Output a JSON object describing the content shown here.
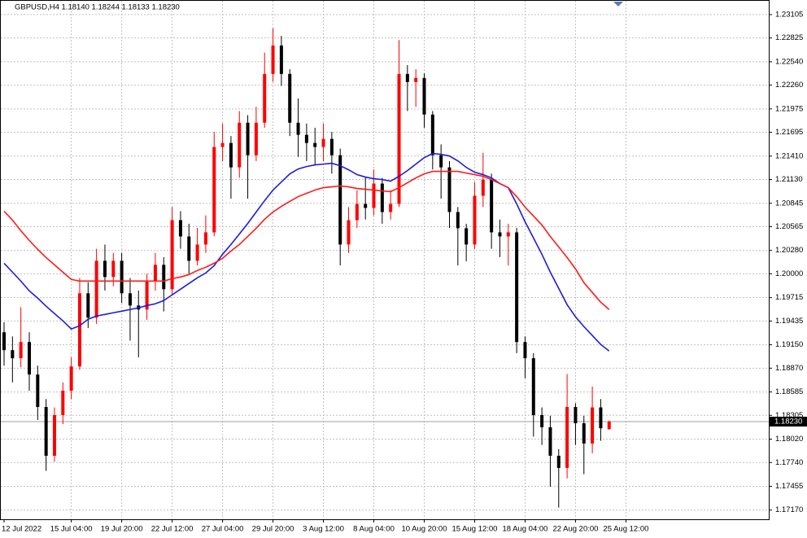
{
  "chart_data": {
    "type": "candlestick",
    "title": "GBPUSD,H4  1.18140 1.18244 1.18133 1.18230",
    "categories": [
      "12 Jul 2022",
      null,
      null,
      null,
      null,
      null,
      null,
      null,
      "15 Jul 04:00",
      null,
      null,
      null,
      null,
      null,
      "19 Jul 20:00",
      null,
      null,
      null,
      null,
      null,
      "22 Jul 12:00",
      null,
      null,
      null,
      null,
      null,
      "27 Jul 04:00",
      null,
      null,
      null,
      null,
      null,
      "29 Jul 20:00",
      null,
      null,
      null,
      null,
      null,
      "3 Aug 12:00",
      null,
      null,
      null,
      null,
      null,
      "8 Aug 04:00",
      null,
      null,
      null,
      null,
      null,
      "10 Aug 20:00",
      null,
      null,
      null,
      null,
      null,
      "15 Aug 12:00",
      null,
      null,
      null,
      null,
      null,
      "18 Aug 04:00",
      null,
      null,
      null,
      null,
      null,
      "22 Aug 20:00",
      null,
      null,
      null,
      null,
      null,
      "25 Aug 12:00"
    ],
    "open": [
      1.193,
      1.19086,
      1.18989,
      1.19183,
      1.18794,
      1.18405,
      1.17821,
      1.18308,
      1.186,
      1.18891,
      1.19767,
      1.19475,
      1.20156,
      1.19962,
      1.20156,
      1.19767,
      1.19621,
      1.19573,
      1.19913,
      1.20108,
      1.19816,
      1.20643,
      1.20448,
      1.20156,
      1.20351,
      1.20497,
      1.21519,
      1.21567,
      1.21275,
      1.2181,
      1.21421,
      1.2181,
      1.22394,
      1.22735,
      1.22394,
      1.2181,
      1.21665,
      1.21567,
      1.21519,
      1.21616,
      1.21421,
      1.20351,
      1.20643,
      1.20837,
      1.20789,
      1.21081,
      1.2074,
      1.20837,
      1.22394,
      1.22297,
      1.22346,
      1.21908,
      1.21421,
      1.21275,
      1.2074,
      1.20546,
      1.20351,
      1.20935,
      1.21129,
      1.20497,
      1.20448,
      1.20497,
      1.19183,
      1.18989,
      1.18308,
      1.18162,
      1.17821,
      1.17675,
      1.18405,
      1.1821,
      1.17967,
      1.184,
      1.1814,
      null,
      null
    ],
    "high": [
      1.1942,
      1.1925,
      1.196,
      1.193,
      1.189,
      1.185,
      1.184,
      1.187,
      1.19,
      1.1995,
      1.199,
      1.203,
      1.2035,
      1.2025,
      1.2025,
      1.1995,
      1.198,
      1.2,
      1.2025,
      1.202,
      1.208,
      1.2075,
      1.206,
      1.2055,
      1.207,
      1.217,
      1.218,
      1.2165,
      1.2195,
      1.219,
      1.22,
      1.2265,
      1.2294,
      1.2285,
      1.2245,
      1.221,
      1.218,
      1.2175,
      1.218,
      1.217,
      1.215,
      1.208,
      1.21,
      1.2115,
      1.2125,
      1.2115,
      1.21,
      1.228,
      1.225,
      1.2245,
      1.224,
      1.2195,
      1.2155,
      1.2135,
      1.208,
      1.206,
      1.211,
      1.2145,
      1.212,
      1.2065,
      1.206,
      1.2055,
      1.1925,
      1.1905,
      1.184,
      1.183,
      1.179,
      1.188,
      1.1845,
      1.183,
      1.1865,
      1.185,
      1.18244,
      null,
      null
    ],
    "low": [
      1.189,
      1.187,
      1.1888,
      1.186,
      1.1825,
      1.1764,
      1.1775,
      1.182,
      1.185,
      1.1885,
      1.1935,
      1.194,
      1.198,
      1.1985,
      1.1965,
      1.192,
      1.19,
      1.1945,
      1.198,
      1.1955,
      1.1975,
      1.203,
      1.2,
      1.201,
      1.2025,
      1.2045,
      1.2135,
      1.209,
      1.2115,
      1.209,
      1.2135,
      1.2175,
      1.223,
      1.2225,
      1.2165,
      1.214,
      1.2135,
      1.213,
      1.2135,
      1.212,
      1.201,
      1.2025,
      1.2055,
      1.2065,
      1.207,
      1.206,
      1.2065,
      1.208,
      1.2195,
      1.22,
      1.2175,
      1.2125,
      1.209,
      1.2055,
      1.201,
      1.2015,
      1.203,
      1.208,
      1.203,
      1.202,
      1.201,
      1.1905,
      1.1875,
      1.1805,
      1.1795,
      1.1745,
      1.172,
      1.1755,
      1.1795,
      1.176,
      1.1785,
      1.18,
      1.18133,
      null,
      null
    ],
    "close": [
      1.19086,
      1.18989,
      1.19183,
      1.18794,
      1.18405,
      1.17821,
      1.18308,
      1.186,
      1.18891,
      1.19767,
      1.19475,
      1.20156,
      1.19962,
      1.20156,
      1.19767,
      1.19621,
      1.19573,
      1.19913,
      1.20108,
      1.19816,
      1.20643,
      1.20448,
      1.20156,
      1.20351,
      1.20497,
      1.21519,
      1.21567,
      1.21275,
      1.2181,
      1.21421,
      1.2181,
      1.22394,
      1.22735,
      1.22394,
      1.2181,
      1.21665,
      1.21567,
      1.21519,
      1.21616,
      1.21421,
      1.20351,
      1.20643,
      1.20837,
      1.20789,
      1.21081,
      1.2074,
      1.20837,
      1.22394,
      1.22297,
      1.22346,
      1.21908,
      1.21421,
      1.21275,
      1.2074,
      1.20546,
      1.20351,
      1.20935,
      1.21129,
      1.20497,
      1.20448,
      1.20497,
      1.19183,
      1.18989,
      1.18308,
      1.18162,
      1.17821,
      1.17675,
      1.18405,
      1.1821,
      1.17967,
      1.184,
      1.1815,
      1.1823,
      null,
      null
    ],
    "up_color": "#ff0000",
    "down_color": "#000000",
    "series": [
      {
        "color": "#1c1ce0",
        "values": [
          1.20127,
          1.2002,
          1.19913,
          1.19796,
          1.19709,
          1.19612,
          1.19524,
          1.19437,
          1.19339,
          1.19378,
          1.19456,
          1.19495,
          1.19514,
          1.19534,
          1.19553,
          1.19573,
          1.19592,
          1.19621,
          1.19641,
          1.1968,
          1.19748,
          1.19816,
          1.19884,
          1.19952,
          1.2001,
          1.20098,
          1.20234,
          1.20351,
          1.20477,
          1.20604,
          1.2074,
          1.20876,
          1.21003,
          1.211,
          1.21197,
          1.21256,
          1.21285,
          1.21305,
          1.21314,
          1.21324,
          1.21295,
          1.21246,
          1.21188,
          1.21159,
          1.21139,
          1.21129,
          1.2111,
          1.21168,
          1.21236,
          1.21314,
          1.21392,
          1.21441,
          1.21431,
          1.21411,
          1.21353,
          1.21275,
          1.21217,
          1.21188,
          1.21149,
          1.21081,
          1.21032,
          1.20838,
          1.20623,
          1.20429,
          1.20234,
          1.2002,
          1.19826,
          1.19631,
          1.19485,
          1.19368,
          1.19261,
          1.19154,
          1.19076,
          null,
          null
        ]
      },
      {
        "color": "#ff1a1a",
        "values": [
          1.2075,
          1.20643,
          1.20516,
          1.204,
          1.20293,
          1.20195,
          1.20108,
          1.2002,
          1.19933,
          1.19913,
          1.19913,
          1.19913,
          1.19913,
          1.19913,
          1.19913,
          1.19913,
          1.19913,
          1.19913,
          1.19913,
          1.19913,
          1.19942,
          1.19962,
          1.19991,
          1.2004,
          1.20079,
          1.20127,
          1.20186,
          1.20273,
          1.20351,
          1.20448,
          1.20546,
          1.20653,
          1.2074,
          1.20808,
          1.20867,
          1.20925,
          1.20964,
          1.21003,
          1.21032,
          1.21042,
          1.21052,
          1.21042,
          1.21022,
          1.21013,
          1.21003,
          1.20993,
          1.20984,
          1.21032,
          1.21091,
          1.21149,
          1.21197,
          1.21227,
          1.21227,
          1.21227,
          1.21227,
          1.21207,
          1.21188,
          1.21168,
          1.21129,
          1.21081,
          1.21032,
          1.20925,
          1.20799,
          1.20692,
          1.20585,
          1.20448,
          1.20322,
          1.20195,
          1.20059,
          1.19894,
          1.19777,
          1.1966,
          1.19573,
          null,
          null
        ]
      }
    ],
    "current_price": {
      "value": 1.1823,
      "label": "1.18230"
    },
    "ylim": [
      1.1706,
      1.2327
    ],
    "yticks": [
      1.23105,
      1.22825,
      {
        "value": 1.2254,
        "label": "1.22540"
      },
      {
        "value": 1.2226,
        "label": "1.22260"
      },
      1.21975,
      1.21695,
      {
        "value": 1.2141,
        "label": "1.21410"
      },
      {
        "value": 1.2113,
        "label": "1.21130"
      },
      1.20845,
      1.20565,
      {
        "value": 1.2028,
        "label": "1.20280"
      },
      {
        "value": 1.2,
        "label": "1.20000"
      },
      1.19715,
      1.19435,
      {
        "value": 1.1915,
        "label": "1.19150"
      },
      {
        "value": 1.1887,
        "label": "1.18870"
      },
      1.18585,
      1.18305,
      {
        "value": 1.1802,
        "label": "1.18020"
      },
      {
        "value": 1.1774,
        "label": "1.17740"
      },
      1.17455,
      {
        "value": 1.1717,
        "label": "1.17170"
      }
    ],
    "grid": true
  }
}
